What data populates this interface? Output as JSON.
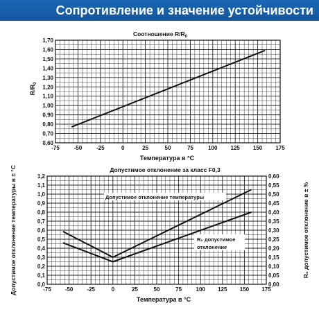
{
  "header": {
    "title": "Сопротивление и значение устойчивости"
  },
  "colors": {
    "header_bg": "#1a62ae",
    "grid": "#222222",
    "line": "#111111"
  },
  "chart_data": [
    {
      "type": "line",
      "title": "Соотношение R/R",
      "title_sub": "0",
      "xlabel": "Температура в °C",
      "ylabel": "R/R",
      "ylabel_sub": "0",
      "xlim": [
        -75,
        175
      ],
      "ylim": [
        0.6,
        1.7
      ],
      "x_ticks": [
        "-75",
        "-50",
        "-25",
        "0",
        "25",
        "50",
        "75",
        "100",
        "125",
        "150",
        "175"
      ],
      "y_ticks": [
        "0,60",
        "0,70",
        "0,80",
        "0,90",
        "1,00",
        "1,10",
        "1,20",
        "1,30",
        "1,40",
        "1,50",
        "1,60",
        "1,70"
      ],
      "grid": true,
      "series": [
        {
          "x": [
            -57,
            158
          ],
          "y": [
            0.77,
            1.59
          ]
        }
      ]
    },
    {
      "type": "line",
      "title": "Допустимое отклонение за класс F0,3",
      "xlabel": "Температура в °C",
      "ylabel_left": "Допустимое отклонение температуры в ± °C",
      "ylabel_right": "R₀ допустимое отклонение в ± %",
      "xlim": [
        -75,
        175
      ],
      "ylim_left": [
        0.0,
        1.2
      ],
      "ylim_right": [
        0.0,
        0.6
      ],
      "x_ticks": [
        "-75",
        "-50",
        "-25",
        "0",
        "25",
        "50",
        "75",
        "100",
        "125",
        "150",
        "175"
      ],
      "y_ticks_left": [
        "0,0",
        "0,1",
        "0,2",
        "0,3",
        "0,4",
        "0,5",
        "0,6",
        "0,7",
        "0,8",
        "0,9",
        "1,0",
        "1,1",
        "1,2"
      ],
      "y_ticks_right": [
        "0,00",
        "0,05",
        "0,10",
        "0,15",
        "0,20",
        "0,25",
        "0,30",
        "0,35",
        "0,40",
        "0,45",
        "0,50",
        "0,55",
        "0,60"
      ],
      "grid": true,
      "series": [
        {
          "name": "Допустимое отклонение температуры",
          "axis": "left",
          "x": [
            -57,
            0,
            158
          ],
          "y": [
            0.585,
            0.3,
            1.05
          ]
        },
        {
          "name": "R₀ допустимое отклонение",
          "axis": "left",
          "x": [
            -57,
            0,
            158
          ],
          "y": [
            0.46,
            0.25,
            0.8
          ]
        }
      ],
      "annotations": [
        {
          "label": "Допустимое отклонение температуры"
        },
        {
          "label_line1": "R₀ допустимое",
          "label_line2": "отклонение"
        }
      ]
    }
  ]
}
